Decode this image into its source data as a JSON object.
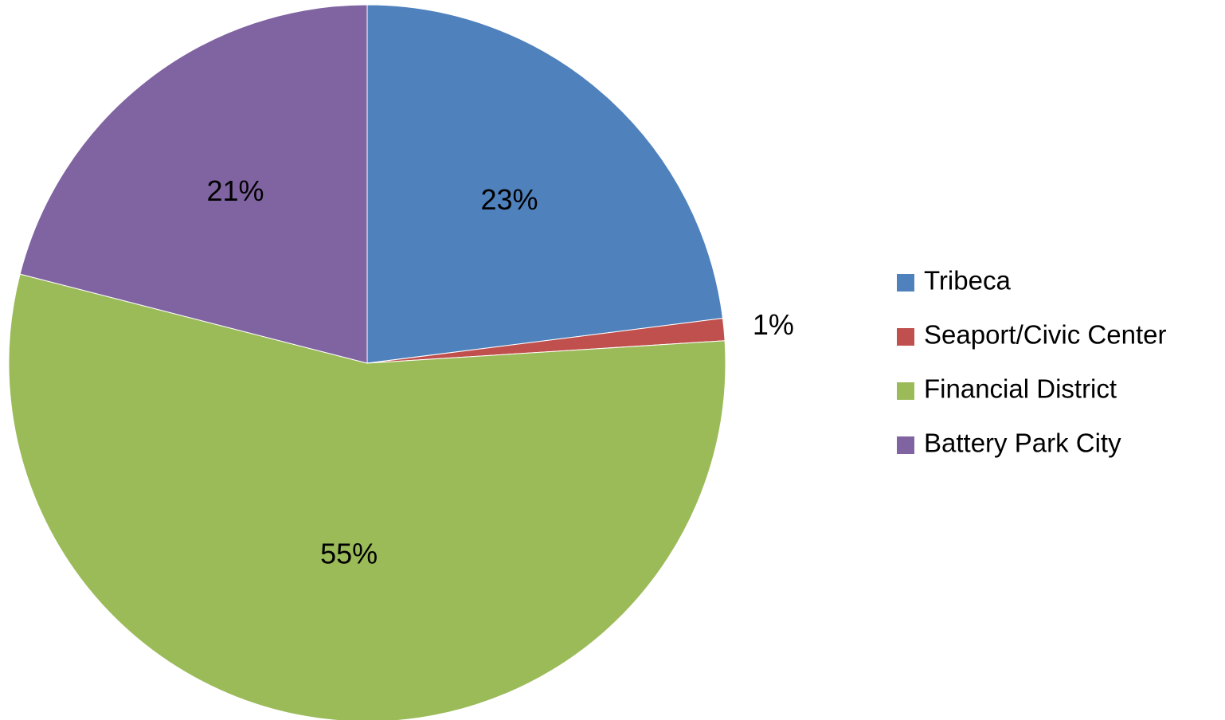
{
  "chart_data": {
    "type": "pie",
    "categories": [
      "Tribeca",
      "Seaport/Civic Center",
      "Financial District",
      "Battery Park City"
    ],
    "values": [
      23,
      1,
      55,
      21
    ],
    "value_labels": [
      "23%",
      "1%",
      "55%",
      "21%"
    ],
    "colors": [
      "#4f81bd",
      "#c0504d",
      "#9bbb59",
      "#8064a2"
    ],
    "legend": "right"
  }
}
